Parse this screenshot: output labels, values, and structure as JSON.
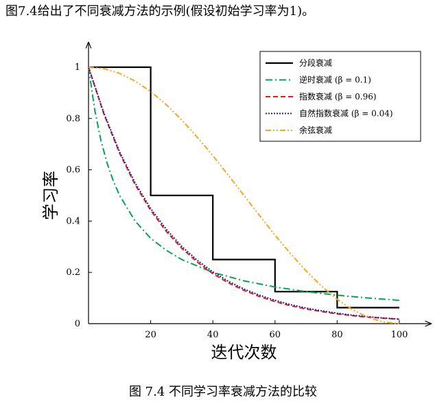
{
  "intro_text": "图7.4给出了不同衰减方法的示例(假设初始学习率为1)。",
  "caption": "图 7.4 不同学习率衰减方法的比较",
  "chart_data": {
    "type": "line",
    "title": "",
    "xlabel": "迭代次数",
    "ylabel": "学习率",
    "xlim": [
      0,
      100
    ],
    "ylim": [
      0,
      1
    ],
    "x_ticks": [
      20,
      40,
      60,
      80,
      100
    ],
    "y_ticks": [
      0,
      0.2,
      0.4,
      0.6,
      0.8,
      1
    ],
    "y_tick_labels": [
      "0",
      "0.2",
      "0.4",
      "0.6",
      "0.8",
      "1"
    ],
    "grid": false,
    "legend_position": "top-right",
    "series": [
      {
        "name": "分段衰减",
        "color": "#000000",
        "dash": "solid",
        "points": [
          [
            0,
            1
          ],
          [
            20,
            1
          ],
          [
            20,
            0.5
          ],
          [
            40,
            0.5
          ],
          [
            40,
            0.25
          ],
          [
            60,
            0.25
          ],
          [
            60,
            0.125
          ],
          [
            80,
            0.125
          ],
          [
            80,
            0.0625
          ],
          [
            100,
            0.0625
          ]
        ]
      },
      {
        "name": "逆时衰减 (β = 0.1)",
        "color": "#00a651",
        "dash": "dashdot",
        "x": [
          0,
          2,
          4,
          6,
          8,
          10,
          15,
          20,
          25,
          30,
          40,
          50,
          60,
          70,
          80,
          90,
          100
        ],
        "y": [
          1,
          0.833,
          0.714,
          0.625,
          0.556,
          0.5,
          0.4,
          0.333,
          0.286,
          0.25,
          0.2,
          0.167,
          0.143,
          0.125,
          0.111,
          0.1,
          0.091
        ]
      },
      {
        "name": "指数衰减 (β = 0.96)",
        "color": "#e31a1c",
        "dash": "dashed",
        "x": [
          0,
          5,
          10,
          15,
          20,
          25,
          30,
          35,
          40,
          45,
          50,
          55,
          60,
          65,
          70,
          75,
          80,
          85,
          90,
          95,
          100
        ],
        "y": [
          1,
          0.815,
          0.665,
          0.542,
          0.442,
          0.36,
          0.294,
          0.24,
          0.195,
          0.159,
          0.13,
          0.106,
          0.086,
          0.07,
          0.057,
          0.047,
          0.038,
          0.031,
          0.025,
          0.021,
          0.017
        ]
      },
      {
        "name": "自然指数衰减 (β = 0.04)",
        "color": "#1f1f99",
        "dash": "dotted",
        "x": [
          0,
          5,
          10,
          15,
          20,
          25,
          30,
          35,
          40,
          45,
          50,
          55,
          60,
          65,
          70,
          75,
          80,
          85,
          90,
          95,
          100
        ],
        "y": [
          1,
          0.819,
          0.67,
          0.549,
          0.449,
          0.368,
          0.301,
          0.247,
          0.202,
          0.165,
          0.135,
          0.111,
          0.091,
          0.074,
          0.061,
          0.05,
          0.041,
          0.033,
          0.027,
          0.022,
          0.018
        ]
      },
      {
        "name": "余弦衰减",
        "color": "#f5a623",
        "dash": "dashdotdot",
        "x": [
          0,
          5,
          10,
          15,
          20,
          25,
          30,
          35,
          40,
          45,
          50,
          55,
          60,
          65,
          70,
          75,
          80,
          85,
          90,
          95,
          100
        ],
        "y": [
          1,
          0.994,
          0.976,
          0.946,
          0.905,
          0.854,
          0.794,
          0.727,
          0.655,
          0.578,
          0.5,
          0.422,
          0.345,
          0.273,
          0.206,
          0.146,
          0.095,
          0.054,
          0.024,
          0.006,
          0
        ]
      }
    ]
  }
}
